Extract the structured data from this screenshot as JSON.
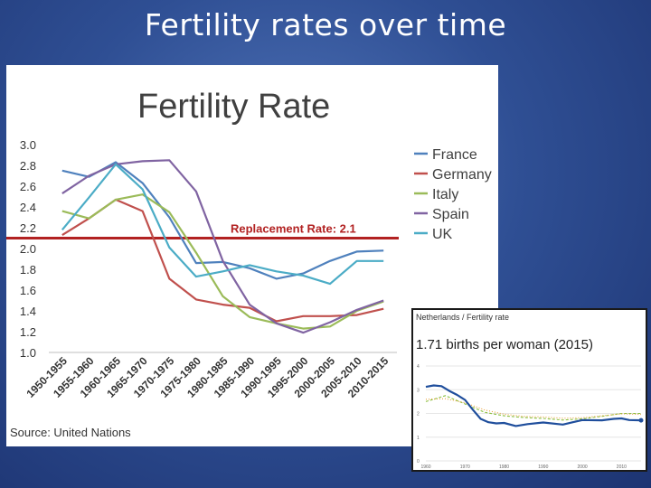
{
  "slide": {
    "title": "Fertility rates over time"
  },
  "chart_data": [
    {
      "type": "line",
      "title": "Fertility Rate",
      "source": "Source: United Nations",
      "xlabel": "",
      "ylabel": "",
      "categories": [
        "1950-1955",
        "1955-1960",
        "1960-1965",
        "1965-1970",
        "1970-1975",
        "1975-1980",
        "1980-1985",
        "1985-1990",
        "1990-1995",
        "1995-2000",
        "2000-2005",
        "2005-2010",
        "2010-2015"
      ],
      "ylim": [
        1.0,
        3.0
      ],
      "yticks": [
        "1.0",
        "1.2",
        "1.4",
        "1.6",
        "1.8",
        "2.0",
        "2.2",
        "2.4",
        "2.6",
        "2.8",
        "3.0"
      ],
      "grid": false,
      "legend": "right",
      "series": [
        {
          "name": "France",
          "color": "#4f81bd",
          "values": [
            2.75,
            2.69,
            2.83,
            2.63,
            2.3,
            1.86,
            1.87,
            1.81,
            1.71,
            1.76,
            1.88,
            1.97,
            1.98
          ]
        },
        {
          "name": "Germany",
          "color": "#c0504d",
          "values": [
            2.13,
            2.29,
            2.47,
            2.36,
            1.71,
            1.51,
            1.46,
            1.43,
            1.3,
            1.35,
            1.35,
            1.36,
            1.42
          ]
        },
        {
          "name": "Italy",
          "color": "#9bbb59",
          "values": [
            2.36,
            2.29,
            2.47,
            2.52,
            2.35,
            1.96,
            1.54,
            1.34,
            1.28,
            1.23,
            1.25,
            1.4,
            1.49
          ]
        },
        {
          "name": "Spain",
          "color": "#8064a2",
          "values": [
            2.53,
            2.7,
            2.81,
            2.84,
            2.85,
            2.55,
            1.88,
            1.46,
            1.28,
            1.19,
            1.29,
            1.41,
            1.5
          ]
        },
        {
          "name": "UK",
          "color": "#4bacc6",
          "values": [
            2.18,
            2.49,
            2.81,
            2.57,
            2.01,
            1.73,
            1.78,
            1.84,
            1.78,
            1.74,
            1.66,
            1.88,
            1.88
          ]
        }
      ],
      "reference_line": {
        "value": 2.1,
        "label": "Replacement Rate: 2.1",
        "color": "#b22222"
      }
    },
    {
      "type": "line",
      "header": "Netherlands / Fertility rate",
      "headline": "1.71 births per woman (2015)",
      "xlim": [
        1960,
        2015
      ],
      "xticks": [
        "1960",
        "1970",
        "1980",
        "1990",
        "2000",
        "2010"
      ],
      "ylim": [
        0,
        4
      ],
      "yticks": [
        "0",
        "1",
        "2",
        "3",
        "4"
      ],
      "series": [
        {
          "color": "#1f4e9c",
          "x": [
            1960,
            1962,
            1964,
            1966,
            1968,
            1970,
            1972,
            1974,
            1976,
            1978,
            1980,
            1983,
            1986,
            1990,
            1995,
            2000,
            2005,
            2008,
            2010,
            2012,
            2015
          ],
          "values": [
            3.12,
            3.18,
            3.15,
            2.95,
            2.78,
            2.57,
            2.16,
            1.77,
            1.63,
            1.58,
            1.6,
            1.47,
            1.55,
            1.62,
            1.53,
            1.72,
            1.71,
            1.77,
            1.79,
            1.72,
            1.71
          ]
        },
        {
          "color": "#8cbf3f",
          "dashed": true,
          "x": [
            1960,
            1965,
            1970,
            1975,
            1980,
            1985,
            1990,
            1995,
            2000,
            2005,
            2010,
            2015
          ],
          "values": [
            2.5,
            2.75,
            2.4,
            2.05,
            1.9,
            1.83,
            1.79,
            1.72,
            1.77,
            1.88,
            2.0,
            2.0
          ]
        },
        {
          "color": "#e8a23a",
          "dotted": true,
          "x": [
            1960,
            1965,
            1970,
            1975,
            1980,
            1985,
            1990,
            1995,
            2000,
            2005,
            2010,
            2015
          ],
          "values": [
            2.6,
            2.62,
            2.45,
            2.15,
            1.97,
            1.88,
            1.85,
            1.8,
            1.82,
            1.9,
            1.98,
            1.96
          ]
        }
      ]
    }
  ]
}
